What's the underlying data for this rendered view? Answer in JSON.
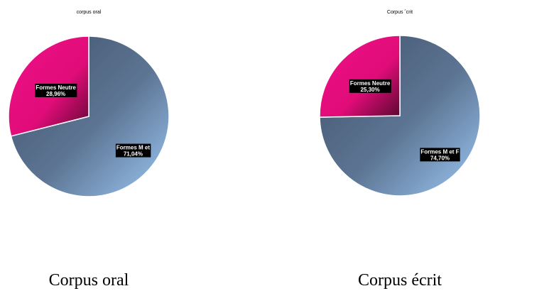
{
  "chart_data": [
    {
      "type": "pie",
      "title": "corpus oral",
      "caption": "Corpus oral",
      "categories": [
        "Formes M et",
        "Formes Neutre"
      ],
      "values": [
        71.04,
        28.96
      ],
      "value_labels": [
        "71,04%",
        "28,96%"
      ],
      "colors": [
        "#6f8fb8",
        "#e0107a"
      ]
    },
    {
      "type": "pie",
      "title": "Corpus ˆcrit",
      "caption": "Corpus écrit",
      "categories": [
        "Formes M et F",
        "Formes Neutre"
      ],
      "values": [
        74.7,
        25.3
      ],
      "value_labels": [
        "74,70%",
        "25,30%"
      ],
      "colors": [
        "#6f8fb8",
        "#e0107a"
      ]
    }
  ]
}
